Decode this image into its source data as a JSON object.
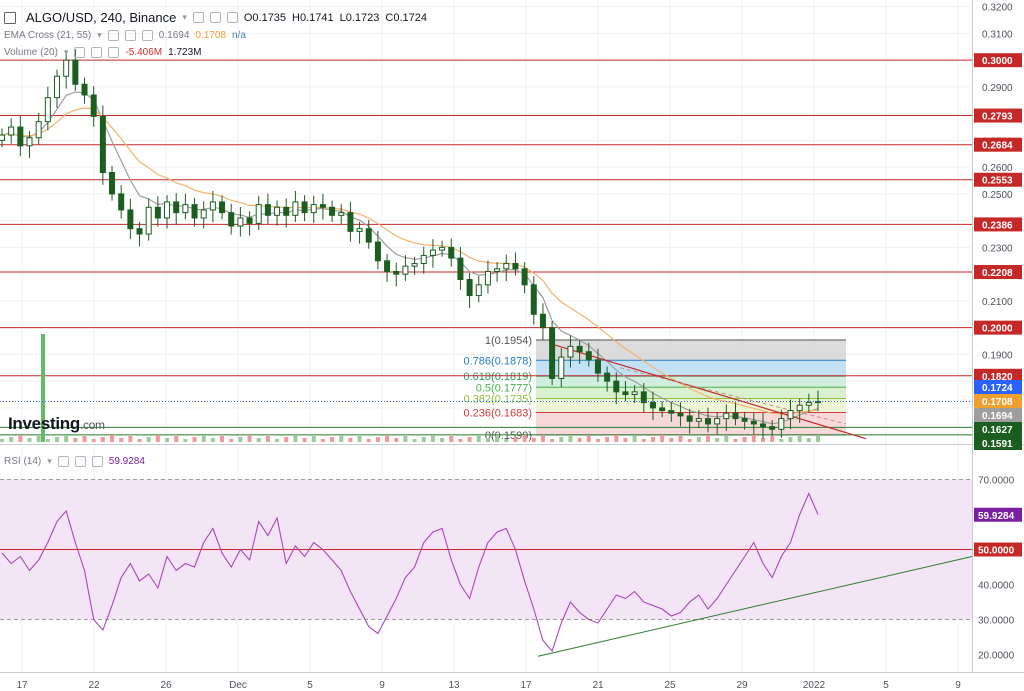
{
  "header": {
    "symbol": "ALGO/USD, 240, Binance",
    "open": "O0.1735",
    "high": "H0.1741",
    "low": "L0.1723",
    "close": "C0.1724",
    "ema_label": "EMA Cross (21, 55)",
    "ema_fast": "0.1694",
    "ema_slow": "0.1708",
    "ema_na": "n/a",
    "volume_label": "Volume (20)",
    "volume_val1": "-5.406M",
    "volume_val2": "1.723M",
    "rsi_label": "RSI (14)",
    "rsi_value": "59.9284"
  },
  "logo": {
    "name": "Investing",
    "suffix": ".com"
  },
  "chart_data": {
    "type": "candlestick",
    "price_axis": {
      "ylim": [
        0.1565,
        0.3225
      ],
      "ticks": [
        "0.3200",
        "0.3100",
        "0.3000",
        "0.2900",
        "0.2800",
        "0.2700",
        "0.2600",
        "0.2500",
        "0.2400",
        "0.2300",
        "0.2200",
        "0.2100",
        "0.2000",
        "0.1900",
        "0.1800",
        "0.1700",
        "0.1600"
      ]
    },
    "time_axis": {
      "labels": [
        "17",
        "22",
        "26",
        "Dec",
        "5",
        "9",
        "13",
        "17",
        "21",
        "25",
        "29",
        "2022",
        "5",
        "9"
      ]
    },
    "close_series": [
      0.272,
      0.275,
      0.268,
      0.271,
      0.277,
      0.286,
      0.294,
      0.3,
      0.291,
      0.287,
      0.279,
      0.258,
      0.25,
      0.244,
      0.237,
      0.235,
      0.245,
      0.241,
      0.247,
      0.243,
      0.246,
      0.241,
      0.244,
      0.247,
      0.243,
      0.238,
      0.241,
      0.239,
      0.246,
      0.242,
      0.245,
      0.242,
      0.247,
      0.243,
      0.246,
      0.245,
      0.242,
      0.243,
      0.236,
      0.237,
      0.232,
      0.225,
      0.221,
      0.22,
      0.223,
      0.224,
      0.227,
      0.229,
      0.23,
      0.226,
      0.218,
      0.212,
      0.216,
      0.221,
      0.222,
      0.224,
      0.222,
      0.216,
      0.205,
      0.2,
      0.181,
      0.189,
      0.193,
      0.191,
      0.188,
      0.183,
      0.18,
      0.176,
      0.175,
      0.176,
      0.172,
      0.17,
      0.169,
      0.168,
      0.167,
      0.165,
      0.166,
      0.164,
      0.166,
      0.168,
      0.166,
      0.165,
      0.164,
      0.163,
      0.162,
      0.166,
      0.169,
      0.171,
      0.172,
      0.1724
    ],
    "horizontal_levels": [
      {
        "label": "0.3000",
        "value": 0.3
      },
      {
        "label": "0.2793",
        "value": 0.2793
      },
      {
        "label": "0.2684",
        "value": 0.2684
      },
      {
        "label": "0.2553",
        "value": 0.2553
      },
      {
        "label": "0.2386",
        "value": 0.2386
      },
      {
        "label": "0.2208",
        "value": 0.2208
      },
      {
        "label": "0.2000",
        "value": 0.2
      },
      {
        "label": "0.1820",
        "value": 0.182
      }
    ],
    "price_tags": [
      {
        "label": "0.1724",
        "value": 0.1724,
        "color": "#2962ff"
      },
      {
        "label": "0.1708",
        "value": 0.1708,
        "color": "#f0a030"
      },
      {
        "label": "0.1694",
        "value": 0.1694,
        "color": "#9e9e9e"
      },
      {
        "label": "0.1627",
        "value": 0.1627,
        "color": "#1b5e20"
      },
      {
        "label": "0.1591",
        "value": 0.1591,
        "color": "#1b5e20"
      }
    ],
    "fibonacci": [
      {
        "label": "1(0.1954)",
        "value": 0.1954,
        "fill": "#d6d6d6",
        "text_color": "#555555"
      },
      {
        "label": "0.786(0.1878)",
        "value": 0.1878,
        "fill": "#b9dcf2",
        "text_color": "#2a7bbf"
      },
      {
        "label": "0.618(0.1819)",
        "value": 0.1819,
        "fill": "#c8ecd8",
        "text_color": "#2e9e5e"
      },
      {
        "label": "0.5(0.1777)",
        "value": 0.1777,
        "fill": "#d4efc9",
        "text_color": "#4caf50"
      },
      {
        "label": "0.382(0.1735)",
        "value": 0.1735,
        "fill": "#e9f5cf",
        "text_color": "#8bbf3a"
      },
      {
        "label": "0.236(0.1683)",
        "value": 0.1683,
        "fill": "#f6d2d2",
        "text_color": "#d33a3a"
      },
      {
        "label": "0(0.1599)",
        "value": 0.1599,
        "fill": "",
        "text_color": "#555555"
      }
    ],
    "rsi": {
      "ylim": [
        15,
        75
      ],
      "ticks": [
        "70.0000",
        "60.0000",
        "50.0000",
        "40.0000",
        "30.0000",
        "20.0000"
      ],
      "levels": [
        70,
        50,
        30
      ],
      "current_label": "59.9284",
      "level_label": "50.0000",
      "values": [
        49,
        46,
        48,
        44,
        47,
        52,
        58,
        61,
        52,
        44,
        30,
        27,
        34,
        42,
        46,
        41,
        43,
        39,
        48,
        44,
        46,
        45,
        52,
        56,
        49,
        45,
        50,
        47,
        58,
        54,
        59,
        46,
        51,
        48,
        52,
        50,
        47,
        44,
        38,
        33,
        28,
        26,
        31,
        36,
        42,
        45,
        52,
        55,
        56,
        47,
        40,
        36,
        45,
        52,
        55,
        56,
        50,
        41,
        33,
        24,
        21,
        29,
        35,
        32,
        30,
        29,
        33,
        37,
        36,
        38,
        35,
        34,
        33,
        31,
        32,
        35,
        37,
        33,
        36,
        40,
        44,
        48,
        52,
        46,
        42,
        48,
        52,
        60,
        66,
        60
      ]
    }
  },
  "colors": {
    "level_line": "#c62828",
    "rsi_band": "#f3e5f5",
    "rsi_line": "#ab47bc",
    "rsi_tag": "#7b1fa2",
    "ema_fast": "#9e9e9e",
    "ema_slow": "#f6b26b",
    "trendline_red": "#c62828",
    "trendline_green": "#2e7d32",
    "candle": "#1b5e20"
  }
}
